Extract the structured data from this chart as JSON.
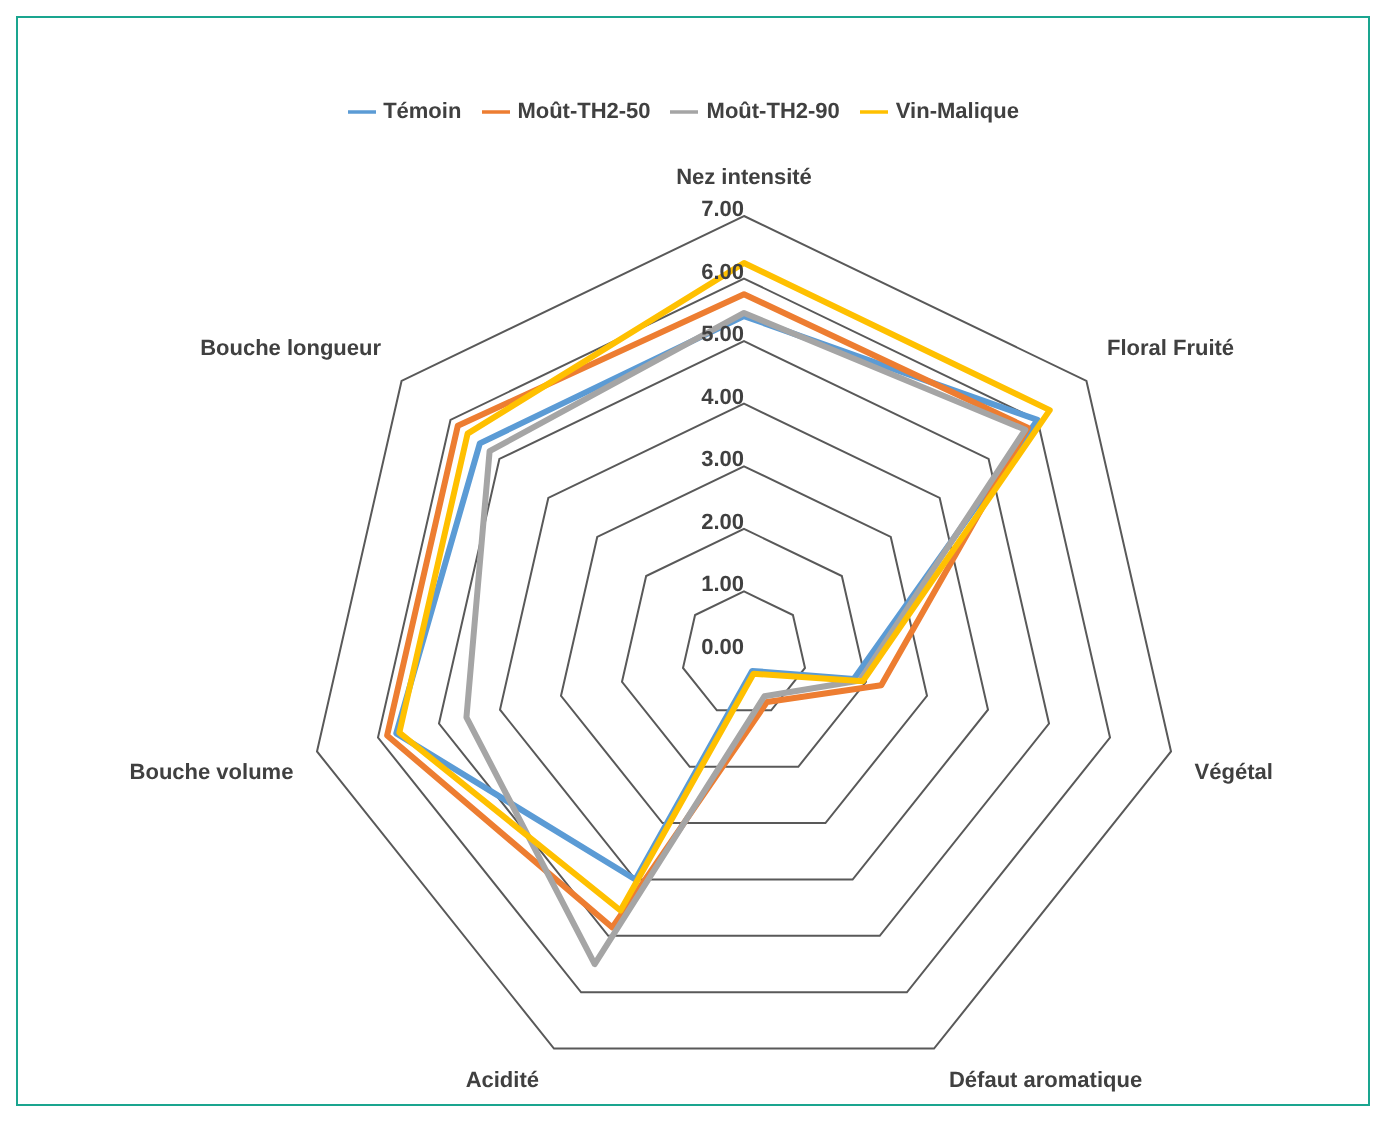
{
  "chart_data": {
    "type": "radar",
    "categories": [
      "Nez intensité",
      "Floral Fruité",
      "Végétal",
      "Défaut aromatique",
      "Acidité",
      "Bouche volume",
      "Bouche longueur"
    ],
    "series": [
      {
        "name": "Témoin",
        "color": "#5b9bd5",
        "values": [
          5.4,
          6.0,
          1.8,
          0.3,
          4.0,
          5.7,
          5.4
        ]
      },
      {
        "name": "Moût-TH2-50",
        "color": "#ed7d31",
        "values": [
          5.75,
          5.8,
          2.25,
          0.85,
          4.85,
          5.85,
          5.85
        ]
      },
      {
        "name": "Moût-TH2-90",
        "color": "#a5a5a5",
        "values": [
          5.45,
          5.75,
          1.9,
          0.75,
          5.5,
          4.55,
          5.2
        ]
      },
      {
        "name": "Vin-Malique",
        "color": "#ffc000",
        "values": [
          6.25,
          6.25,
          1.95,
          0.35,
          4.55,
          5.65,
          5.65
        ]
      }
    ],
    "ylim": [
      0,
      7
    ],
    "yticks": [
      {
        "value": 0,
        "label": "0.00"
      },
      {
        "value": 1,
        "label": "1.00"
      },
      {
        "value": 2,
        "label": "2.00"
      },
      {
        "value": 3,
        "label": "3.00"
      },
      {
        "value": 4,
        "label": "4.00"
      },
      {
        "value": 5,
        "label": "5.00"
      },
      {
        "value": 6,
        "label": "6.00"
      },
      {
        "value": 7,
        "label": "7.00"
      }
    ],
    "grid": true,
    "legend": "top"
  }
}
